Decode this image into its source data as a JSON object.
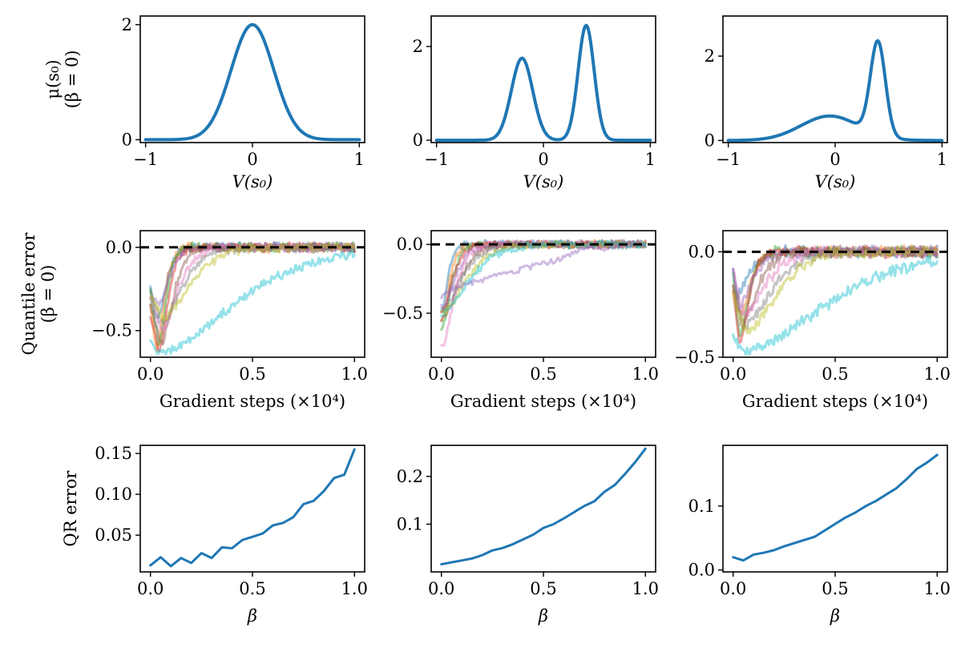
{
  "colors": {
    "primary": "#1f77b4",
    "reference": "#000000",
    "palette": [
      "#1f77b4",
      "#ff7f0e",
      "#2ca02c",
      "#d62728",
      "#9467bd",
      "#8c564b",
      "#e377c2",
      "#7f7f7f",
      "#bcbd22",
      "#17becf"
    ]
  },
  "chart_data": [
    {
      "type": "line",
      "row": 1,
      "col": 1,
      "ylabel_lines": [
        "μ(s₀)",
        "(β = 0)"
      ],
      "xlabel": "V(s₀)",
      "xlim": [
        -1.05,
        1.05
      ],
      "ylim": [
        -0.05,
        2.15
      ],
      "xticks": [
        -1,
        0,
        1
      ],
      "xtick_labels": [
        "−1",
        "0",
        "1"
      ],
      "yticks": [
        0,
        2
      ],
      "ytick_labels": [
        "0",
        "2"
      ],
      "shape": {
        "components": [
          {
            "weight": 2.0,
            "mean": 0.0,
            "sd": 0.2
          }
        ]
      },
      "series": [
        {
          "name": "density",
          "role": "main",
          "x": [],
          "y": []
        }
      ]
    },
    {
      "type": "line",
      "row": 1,
      "col": 2,
      "ylabel_lines": [],
      "xlabel": "V(s₀)",
      "xlim": [
        -1.05,
        1.05
      ],
      "ylim": [
        -0.05,
        2.65
      ],
      "xticks": [
        -1,
        0,
        1
      ],
      "xtick_labels": [
        "−1",
        "0",
        "1"
      ],
      "yticks": [
        0,
        2
      ],
      "ytick_labels": [
        "0",
        "2"
      ],
      "shape": {
        "components": [
          {
            "weight": 1.75,
            "mean": -0.2,
            "sd": 0.1
          },
          {
            "weight": 2.45,
            "mean": 0.4,
            "sd": 0.075
          }
        ]
      },
      "series": [
        {
          "name": "density",
          "role": "main",
          "x": [],
          "y": []
        }
      ]
    },
    {
      "type": "line",
      "row": 1,
      "col": 3,
      "ylabel_lines": [],
      "xlabel": "V(s₀)",
      "xlim": [
        -1.05,
        1.05
      ],
      "ylim": [
        -0.05,
        2.95
      ],
      "xticks": [
        -1,
        0,
        1
      ],
      "xtick_labels": [
        "−1",
        "0",
        "1"
      ],
      "yticks": [
        0,
        2
      ],
      "ytick_labels": [
        "0",
        "2"
      ],
      "shape": {
        "components": [
          {
            "weight": 0.58,
            "mean": -0.05,
            "sd": 0.27
          },
          {
            "weight": 2.22,
            "mean": 0.4,
            "sd": 0.07
          }
        ]
      },
      "series": [
        {
          "name": "density",
          "role": "main",
          "x": [],
          "y": []
        }
      ]
    },
    {
      "type": "line",
      "row": 2,
      "col": 1,
      "ylabel_lines": [
        "Quantile error",
        "(β = 0)"
      ],
      "xlabel": "Gradient steps (×10⁴)",
      "xlim": [
        -0.05,
        1.05
      ],
      "ylim": [
        -0.66,
        0.1
      ],
      "xticks": [
        0,
        0.5,
        1
      ],
      "xtick_labels": [
        "0.0",
        "0.5",
        "1.0"
      ],
      "yticks": [
        0,
        -0.5
      ],
      "ytick_labels": [
        "0.0",
        "−0.5"
      ],
      "reference_y": 0,
      "traces": [
        {
          "x0": -0.25,
          "min": -0.44,
          "tmin": 0.03,
          "rec": 0.06
        },
        {
          "x0": -0.35,
          "min": -0.62,
          "tmin": 0.03,
          "rec": 0.05
        },
        {
          "x0": -0.27,
          "min": -0.6,
          "tmin": 0.04,
          "rec": 0.05
        },
        {
          "x0": -0.4,
          "min": -0.62,
          "tmin": 0.04,
          "rec": 0.06
        },
        {
          "x0": -0.3,
          "min": -0.33,
          "tmin": 0.04,
          "rec": 0.07
        },
        {
          "x0": -0.35,
          "min": -0.58,
          "tmin": 0.05,
          "rec": 0.08
        },
        {
          "x0": -0.3,
          "min": -0.5,
          "tmin": 0.05,
          "rec": 0.11
        },
        {
          "x0": -0.28,
          "min": -0.45,
          "tmin": 0.05,
          "rec": 0.14
        },
        {
          "x0": -0.3,
          "min": -0.42,
          "tmin": 0.06,
          "rec": 0.18
        },
        {
          "x0": -0.58,
          "min": -0.63,
          "tmin": 0.04,
          "rec": 0.5
        }
      ],
      "series": []
    },
    {
      "type": "line",
      "row": 2,
      "col": 2,
      "ylabel_lines": [],
      "xlabel": "Gradient steps (×10⁴)",
      "xlim": [
        -0.05,
        1.05
      ],
      "ylim": [
        -0.82,
        0.1
      ],
      "xticks": [
        0,
        0.5,
        1
      ],
      "xtick_labels": [
        "0.0",
        "0.5",
        "1.0"
      ],
      "yticks": [
        0,
        -0.5
      ],
      "ytick_labels": [
        "0.0",
        "−0.5"
      ],
      "reference_y": 0,
      "traces": [
        {
          "x0": -0.5,
          "min": -0.5,
          "tmin": 0.0,
          "rec": 0.04
        },
        {
          "x0": -0.55,
          "min": -0.55,
          "tmin": 0.0,
          "rec": 0.05
        },
        {
          "x0": -0.6,
          "min": -0.6,
          "tmin": 0.0,
          "rec": 0.06
        },
        {
          "x0": -0.5,
          "min": -0.5,
          "tmin": 0.0,
          "rec": 0.07
        },
        {
          "x0": -0.45,
          "min": -0.45,
          "tmin": 0.0,
          "rec": 0.09
        },
        {
          "x0": -0.55,
          "min": -0.55,
          "tmin": 0.0,
          "rec": 0.11
        },
        {
          "x0": -0.74,
          "min": -0.74,
          "tmin": 0.0,
          "rec": 0.08
        },
        {
          "x0": -0.48,
          "min": -0.48,
          "tmin": 0.0,
          "rec": 0.13
        },
        {
          "x0": -0.5,
          "min": -0.5,
          "tmin": 0.0,
          "rec": 0.16
        },
        {
          "x0": -0.5,
          "min": -0.5,
          "tmin": 0.0,
          "rec": 0.18
        }
      ],
      "special_trace": {
        "x": [
          0.0,
          0.02,
          0.05,
          0.1,
          0.2,
          0.3,
          0.4,
          0.5,
          0.55,
          0.6,
          0.65,
          0.7,
          0.75,
          0.8,
          0.85,
          0.9,
          0.95,
          1.0
        ],
        "y": [
          -0.38,
          -0.35,
          -0.32,
          -0.3,
          -0.26,
          -0.22,
          -0.18,
          -0.14,
          -0.12,
          -0.1,
          -0.06,
          -0.02,
          -0.02,
          -0.05,
          -0.01,
          0.0,
          0.0,
          0.0
        ]
      },
      "series": []
    },
    {
      "type": "line",
      "row": 2,
      "col": 3,
      "ylabel_lines": [],
      "xlabel": "Gradient steps (×10⁴)",
      "xlim": [
        -0.05,
        1.05
      ],
      "ylim": [
        -0.5,
        0.1
      ],
      "xticks": [
        0,
        0.5,
        1
      ],
      "xtick_labels": [
        "0.0",
        "0.5",
        "1.0"
      ],
      "yticks": [
        0,
        -0.5
      ],
      "ytick_labels": [
        "0.0",
        "−0.5"
      ],
      "reference_y": 0,
      "traces": [
        {
          "x0": -0.1,
          "min": -0.2,
          "tmin": 0.02,
          "rec": 0.08
        },
        {
          "x0": -0.15,
          "min": -0.3,
          "tmin": 0.03,
          "rec": 0.07
        },
        {
          "x0": -0.12,
          "min": -0.4,
          "tmin": 0.03,
          "rec": 0.06
        },
        {
          "x0": -0.2,
          "min": -0.45,
          "tmin": 0.03,
          "rec": 0.06
        },
        {
          "x0": -0.1,
          "min": -0.25,
          "tmin": 0.03,
          "rec": 0.09
        },
        {
          "x0": -0.15,
          "min": -0.35,
          "tmin": 0.04,
          "rec": 0.1
        },
        {
          "x0": -0.1,
          "min": -0.3,
          "tmin": 0.05,
          "rec": 0.14
        },
        {
          "x0": -0.15,
          "min": -0.35,
          "tmin": 0.05,
          "rec": 0.18
        },
        {
          "x0": -0.2,
          "min": -0.38,
          "tmin": 0.06,
          "rec": 0.2
        },
        {
          "x0": -0.4,
          "min": -0.47,
          "tmin": 0.04,
          "rec": 0.55
        }
      ],
      "series": []
    },
    {
      "type": "line",
      "row": 3,
      "col": 1,
      "ylabel_lines": [
        "QR error"
      ],
      "xlabel": "β",
      "xlim": [
        -0.05,
        1.05
      ],
      "ylim": [
        0.005,
        0.16
      ],
      "xticks": [
        0,
        0.5,
        1
      ],
      "xtick_labels": [
        "0.0",
        "0.5",
        "1.0"
      ],
      "yticks": [
        0.05,
        0.1,
        0.15
      ],
      "ytick_labels": [
        "0.05",
        "0.10",
        "0.15"
      ],
      "series": [
        {
          "name": "QR error",
          "role": "main",
          "x": [
            0,
            0.05,
            0.1,
            0.15,
            0.2,
            0.25,
            0.3,
            0.35,
            0.4,
            0.45,
            0.5,
            0.55,
            0.6,
            0.65,
            0.7,
            0.75,
            0.8,
            0.85,
            0.9,
            0.95,
            1.0
          ],
          "y": [
            0.013,
            0.023,
            0.012,
            0.022,
            0.016,
            0.028,
            0.022,
            0.035,
            0.034,
            0.044,
            0.048,
            0.052,
            0.062,
            0.065,
            0.072,
            0.088,
            0.092,
            0.104,
            0.12,
            0.124,
            0.155
          ]
        }
      ]
    },
    {
      "type": "line",
      "row": 3,
      "col": 2,
      "ylabel_lines": [],
      "xlabel": "β",
      "xlim": [
        -0.05,
        1.05
      ],
      "ylim": [
        0.0,
        0.265
      ],
      "xticks": [
        0,
        0.5,
        1
      ],
      "xtick_labels": [
        "0.0",
        "0.5",
        "1.0"
      ],
      "yticks": [
        0.1,
        0.2
      ],
      "ytick_labels": [
        "0.1",
        "0.2"
      ],
      "series": [
        {
          "name": "QR error",
          "role": "main",
          "x": [
            0,
            0.05,
            0.1,
            0.15,
            0.2,
            0.25,
            0.3,
            0.35,
            0.4,
            0.45,
            0.5,
            0.55,
            0.6,
            0.65,
            0.7,
            0.75,
            0.8,
            0.85,
            0.9,
            0.95,
            1.0
          ],
          "y": [
            0.016,
            0.02,
            0.024,
            0.028,
            0.035,
            0.045,
            0.05,
            0.058,
            0.068,
            0.078,
            0.092,
            0.1,
            0.112,
            0.125,
            0.138,
            0.148,
            0.168,
            0.182,
            0.205,
            0.23,
            0.258
          ]
        }
      ]
    },
    {
      "type": "line",
      "row": 3,
      "col": 3,
      "ylabel_lines": [],
      "xlabel": "β",
      "xlim": [
        -0.05,
        1.05
      ],
      "ylim": [
        -0.003,
        0.195
      ],
      "xticks": [
        0,
        0.5,
        1
      ],
      "xtick_labels": [
        "0.0",
        "0.5",
        "1.0"
      ],
      "yticks": [
        0,
        0.1
      ],
      "ytick_labels": [
        "0.0",
        "0.1"
      ],
      "series": [
        {
          "name": "QR error",
          "role": "main",
          "x": [
            0,
            0.05,
            0.1,
            0.15,
            0.2,
            0.25,
            0.3,
            0.35,
            0.4,
            0.45,
            0.5,
            0.55,
            0.6,
            0.65,
            0.7,
            0.75,
            0.8,
            0.85,
            0.9,
            0.95,
            1.0
          ],
          "y": [
            0.02,
            0.015,
            0.024,
            0.027,
            0.031,
            0.037,
            0.042,
            0.047,
            0.052,
            0.062,
            0.072,
            0.082,
            0.09,
            0.1,
            0.108,
            0.118,
            0.128,
            0.142,
            0.158,
            0.168,
            0.18
          ]
        }
      ]
    }
  ]
}
